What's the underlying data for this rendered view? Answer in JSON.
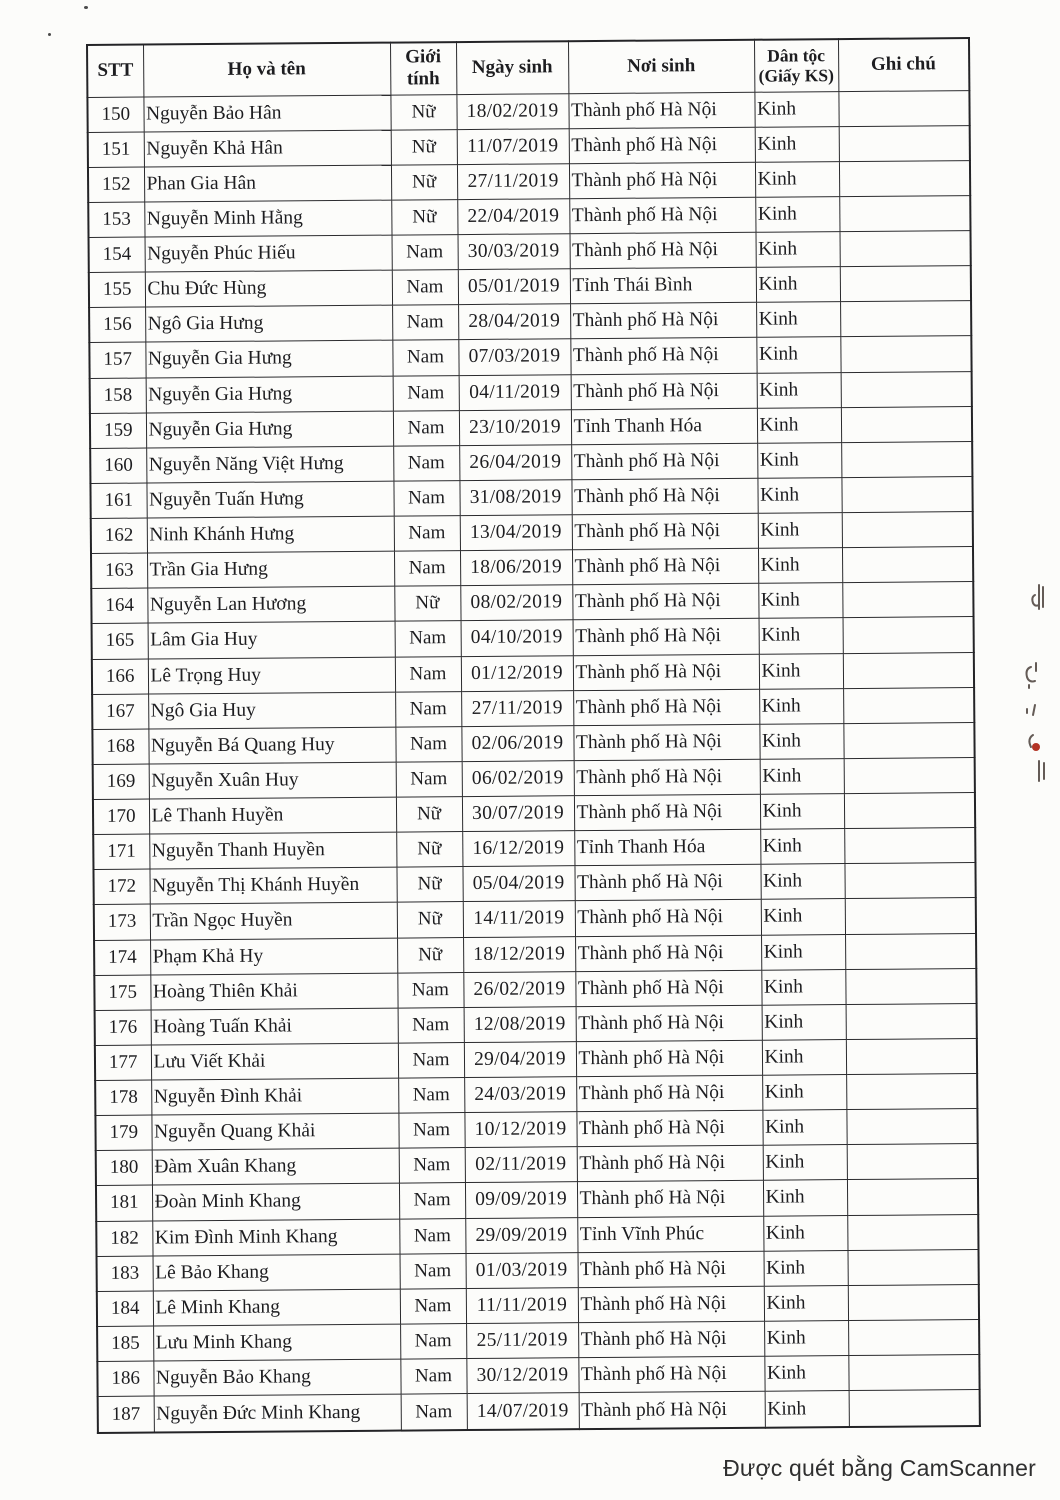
{
  "page": {
    "footer_watermark": "Được quét bằng CamScanner"
  },
  "table": {
    "headers": {
      "stt": "STT",
      "name": "Họ và tên",
      "gender": "Giới tính",
      "dob": "Ngày sinh",
      "pob": "Nơi sinh",
      "ethnicity": "Dân tộc (Giấy KS)",
      "note": "Ghi chú"
    },
    "rows": [
      {
        "stt": "150",
        "name": "Nguyễn Bảo Hân",
        "gender": "Nữ",
        "dob": "18/02/2019",
        "pob": "Thành phố Hà Nội",
        "ethnicity": "Kinh",
        "note": ""
      },
      {
        "stt": "151",
        "name": "Nguyễn Khả Hân",
        "gender": "Nữ",
        "dob": "11/07/2019",
        "pob": "Thành phố Hà Nội",
        "ethnicity": "Kinh",
        "note": ""
      },
      {
        "stt": "152",
        "name": "Phan Gia Hân",
        "gender": "Nữ",
        "dob": "27/11/2019",
        "pob": "Thành phố Hà Nội",
        "ethnicity": "Kinh",
        "note": ""
      },
      {
        "stt": "153",
        "name": "Nguyễn Minh Hằng",
        "gender": "Nữ",
        "dob": "22/04/2019",
        "pob": "Thành phố Hà Nội",
        "ethnicity": "Kinh",
        "note": ""
      },
      {
        "stt": "154",
        "name": "Nguyễn Phúc Hiếu",
        "gender": "Nam",
        "dob": "30/03/2019",
        "pob": "Thành phố Hà Nội",
        "ethnicity": "Kinh",
        "note": ""
      },
      {
        "stt": "155",
        "name": "Chu Đức Hùng",
        "gender": "Nam",
        "dob": "05/01/2019",
        "pob": "Tỉnh Thái Bình",
        "ethnicity": "Kinh",
        "note": ""
      },
      {
        "stt": "156",
        "name": "Ngô Gia Hưng",
        "gender": "Nam",
        "dob": "28/04/2019",
        "pob": "Thành phố Hà Nội",
        "ethnicity": "Kinh",
        "note": ""
      },
      {
        "stt": "157",
        "name": "Nguyễn Gia Hưng",
        "gender": "Nam",
        "dob": "07/03/2019",
        "pob": "Thành phố Hà Nội",
        "ethnicity": "Kinh",
        "note": ""
      },
      {
        "stt": "158",
        "name": "Nguyễn Gia Hưng",
        "gender": "Nam",
        "dob": "04/11/2019",
        "pob": "Thành phố Hà Nội",
        "ethnicity": "Kinh",
        "note": ""
      },
      {
        "stt": "159",
        "name": "Nguyễn Gia Hưng",
        "gender": "Nam",
        "dob": "23/10/2019",
        "pob": "Tỉnh Thanh Hóa",
        "ethnicity": "Kinh",
        "note": ""
      },
      {
        "stt": "160",
        "name": "Nguyễn Năng Việt Hưng",
        "gender": "Nam",
        "dob": "26/04/2019",
        "pob": "Thành phố Hà Nội",
        "ethnicity": "Kinh",
        "note": ""
      },
      {
        "stt": "161",
        "name": "Nguyễn Tuấn Hưng",
        "gender": "Nam",
        "dob": "31/08/2019",
        "pob": "Thành phố Hà Nội",
        "ethnicity": "Kinh",
        "note": ""
      },
      {
        "stt": "162",
        "name": "Ninh Khánh Hưng",
        "gender": "Nam",
        "dob": "13/04/2019",
        "pob": "Thành phố Hà Nội",
        "ethnicity": "Kinh",
        "note": ""
      },
      {
        "stt": "163",
        "name": "Trần Gia Hưng",
        "gender": "Nam",
        "dob": "18/06/2019",
        "pob": "Thành phố Hà Nội",
        "ethnicity": "Kinh",
        "note": ""
      },
      {
        "stt": "164",
        "name": "Nguyễn Lan Hương",
        "gender": "Nữ",
        "dob": "08/02/2019",
        "pob": "Thành phố Hà Nội",
        "ethnicity": "Kinh",
        "note": ""
      },
      {
        "stt": "165",
        "name": "Lâm Gia Huy",
        "gender": "Nam",
        "dob": "04/10/2019",
        "pob": "Thành phố Hà Nội",
        "ethnicity": "Kinh",
        "note": ""
      },
      {
        "stt": "166",
        "name": "Lê Trọng Huy",
        "gender": "Nam",
        "dob": "01/12/2019",
        "pob": "Thành phố Hà Nội",
        "ethnicity": "Kinh",
        "note": ""
      },
      {
        "stt": "167",
        "name": "Ngô Gia Huy",
        "gender": "Nam",
        "dob": "27/11/2019",
        "pob": "Thành phố Hà Nội",
        "ethnicity": "Kinh",
        "note": ""
      },
      {
        "stt": "168",
        "name": "Nguyễn Bá Quang Huy",
        "gender": "Nam",
        "dob": "02/06/2019",
        "pob": "Thành phố Hà Nội",
        "ethnicity": "Kinh",
        "note": ""
      },
      {
        "stt": "169",
        "name": "Nguyễn Xuân Huy",
        "gender": "Nam",
        "dob": "06/02/2019",
        "pob": "Thành phố Hà Nội",
        "ethnicity": "Kinh",
        "note": ""
      },
      {
        "stt": "170",
        "name": "Lê Thanh Huyền",
        "gender": "Nữ",
        "dob": "30/07/2019",
        "pob": "Thành phố Hà Nội",
        "ethnicity": "Kinh",
        "note": ""
      },
      {
        "stt": "171",
        "name": "Nguyễn Thanh Huyền",
        "gender": "Nữ",
        "dob": "16/12/2019",
        "pob": "Tỉnh Thanh Hóa",
        "ethnicity": "Kinh",
        "note": ""
      },
      {
        "stt": "172",
        "name": "Nguyễn Thị Khánh Huyền",
        "gender": "Nữ",
        "dob": "05/04/2019",
        "pob": "Thành phố Hà Nội",
        "ethnicity": "Kinh",
        "note": ""
      },
      {
        "stt": "173",
        "name": "Trần Ngọc Huyền",
        "gender": "Nữ",
        "dob": "14/11/2019",
        "pob": "Thành phố Hà Nội",
        "ethnicity": "Kinh",
        "note": ""
      },
      {
        "stt": "174",
        "name": "Phạm Khả Hy",
        "gender": "Nữ",
        "dob": "18/12/2019",
        "pob": "Thành phố Hà Nội",
        "ethnicity": "Kinh",
        "note": ""
      },
      {
        "stt": "175",
        "name": "Hoàng Thiên Khải",
        "gender": "Nam",
        "dob": "26/02/2019",
        "pob": "Thành phố Hà Nội",
        "ethnicity": "Kinh",
        "note": ""
      },
      {
        "stt": "176",
        "name": "Hoàng Tuấn Khải",
        "gender": "Nam",
        "dob": "12/08/2019",
        "pob": "Thành phố Hà Nội",
        "ethnicity": "Kinh",
        "note": ""
      },
      {
        "stt": "177",
        "name": "Lưu Viết Khải",
        "gender": "Nam",
        "dob": "29/04/2019",
        "pob": "Thành phố Hà Nội",
        "ethnicity": "Kinh",
        "note": ""
      },
      {
        "stt": "178",
        "name": "Nguyễn Đình Khải",
        "gender": "Nam",
        "dob": "24/03/2019",
        "pob": "Thành phố Hà Nội",
        "ethnicity": "Kinh",
        "note": ""
      },
      {
        "stt": "179",
        "name": "Nguyễn Quang Khải",
        "gender": "Nam",
        "dob": "10/12/2019",
        "pob": "Thành phố Hà Nội",
        "ethnicity": "Kinh",
        "note": ""
      },
      {
        "stt": "180",
        "name": "Đàm Xuân Khang",
        "gender": "Nam",
        "dob": "02/11/2019",
        "pob": "Thành phố Hà Nội",
        "ethnicity": "Kinh",
        "note": ""
      },
      {
        "stt": "181",
        "name": "Đoàn Minh Khang",
        "gender": "Nam",
        "dob": "09/09/2019",
        "pob": "Thành phố Hà Nội",
        "ethnicity": "Kinh",
        "note": ""
      },
      {
        "stt": "182",
        "name": "Kim Đình Minh Khang",
        "gender": "Nam",
        "dob": "29/09/2019",
        "pob": "Tỉnh Vĩnh Phúc",
        "ethnicity": "Kinh",
        "note": ""
      },
      {
        "stt": "183",
        "name": "Lê Bảo Khang",
        "gender": "Nam",
        "dob": "01/03/2019",
        "pob": "Thành phố Hà Nội",
        "ethnicity": "Kinh",
        "note": ""
      },
      {
        "stt": "184",
        "name": "Lê Minh Khang",
        "gender": "Nam",
        "dob": "11/11/2019",
        "pob": "Thành phố Hà Nội",
        "ethnicity": "Kinh",
        "note": ""
      },
      {
        "stt": "185",
        "name": "Lưu Minh Khang",
        "gender": "Nam",
        "dob": "25/11/2019",
        "pob": "Thành phố Hà Nội",
        "ethnicity": "Kinh",
        "note": ""
      },
      {
        "stt": "186",
        "name": "Nguyễn Bảo Khang",
        "gender": "Nam",
        "dob": "30/12/2019",
        "pob": "Thành phố Hà Nội",
        "ethnicity": "Kinh",
        "note": ""
      },
      {
        "stt": "187",
        "name": "Nguyễn Đức Minh Khang",
        "gender": "Nam",
        "dob": "14/07/2019",
        "pob": "Thành phố Hà Nội",
        "ethnicity": "Kinh",
        "note": ""
      }
    ]
  },
  "colors": {
    "ink": "#1d1d20",
    "border": "#2b2b2e",
    "paper": "#fcfcfa",
    "annotation_red": "#b33425"
  }
}
